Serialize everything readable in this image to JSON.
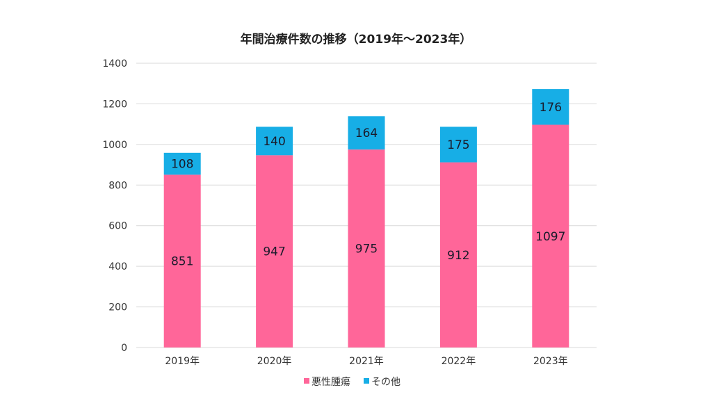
{
  "chart_data": {
    "type": "bar",
    "stacked": true,
    "title": "年間治療件数の推移（2019年～2023年）",
    "xlabel": "",
    "ylabel": "",
    "categories": [
      "2019年",
      "2020年",
      "2021年",
      "2022年",
      "2023年"
    ],
    "series": [
      {
        "name": "悪性腫瘍",
        "color": "#ff6699",
        "values": [
          851,
          947,
          975,
          912,
          1097
        ]
      },
      {
        "name": "その他",
        "color": "#17aee6",
        "values": [
          108,
          140,
          164,
          175,
          176
        ]
      }
    ],
    "ylim": [
      0,
      1400
    ],
    "yticks": [
      0,
      200,
      400,
      600,
      800,
      1000,
      1200,
      1400
    ],
    "grid": true,
    "legend": "bottom",
    "gridColor": "#d9d9d9"
  }
}
